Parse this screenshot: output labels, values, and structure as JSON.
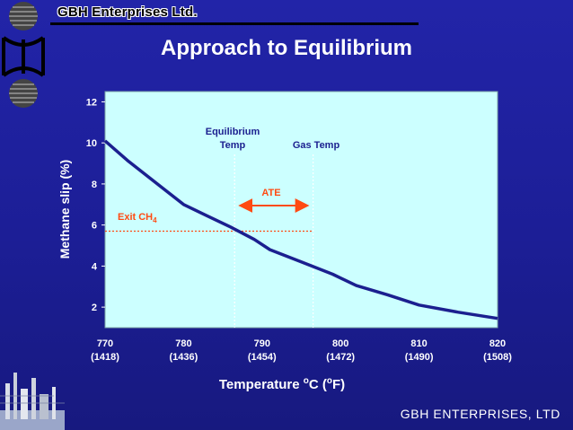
{
  "header": {
    "company": "GBH Enterprises Ltd."
  },
  "footer": {
    "company": "GBH ENTERPRISES, LTD"
  },
  "chart_data": {
    "type": "line",
    "title": "Approach to Equilibrium",
    "ylabel": "Methane slip (%)",
    "xlabel": "Temperature oC (oF)",
    "xlabel_parts": {
      "pre": "Temperature ",
      "sup1": "o",
      "mid": "C (",
      "sup2": "o",
      "post": "F)"
    },
    "ylim": [
      1.0,
      12.5
    ],
    "xlim": [
      770,
      820
    ],
    "yticks": [
      2,
      4,
      6,
      8,
      10,
      12
    ],
    "xticks": [
      {
        "value": 770,
        "c": "770",
        "f": "(1418)"
      },
      {
        "value": 780,
        "c": "780",
        "f": "(1436)"
      },
      {
        "value": 790,
        "c": "790",
        "f": "(1454)"
      },
      {
        "value": 800,
        "c": "800",
        "f": "(1472)"
      },
      {
        "value": 810,
        "c": "810",
        "f": "(1490)"
      },
      {
        "value": 820,
        "c": "820",
        "f": "(1508)"
      }
    ],
    "series": [
      {
        "x": [
          770,
          773,
          777,
          780,
          783,
          786,
          789,
          791,
          795,
          799,
          802,
          806,
          810,
          815,
          820
        ],
        "y": [
          10.1,
          9.1,
          7.9,
          7.0,
          6.45,
          5.9,
          5.3,
          4.8,
          4.2,
          3.6,
          3.05,
          2.6,
          2.1,
          1.75,
          1.45
        ]
      }
    ],
    "annotations": {
      "equilibrium_temp_label": [
        "Equilibrium",
        "Temp"
      ],
      "gas_temp_label": "Gas Temp",
      "ate_label": "ATE",
      "exit_label": "Exit CH",
      "exit_sub": "4",
      "equilibrium_temp_x": 786.5,
      "gas_temp_x": 796.5,
      "exit_level": 5.7
    },
    "colors": {
      "line": "#1b1f8f",
      "plot_bg": "#ccffff",
      "annotation": "#ff4a12"
    },
    "grid": false
  }
}
